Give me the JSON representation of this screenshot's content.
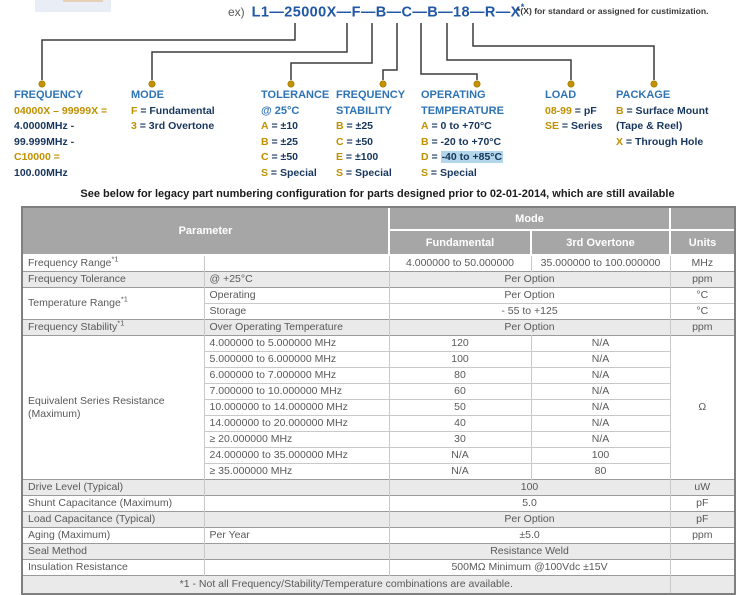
{
  "top": {
    "example_label": "ex)",
    "part_number": "L1—25000X—F—B—C—B—18—R—X",
    "star": "*",
    "note": "*(X) for standard or assigned for custimization."
  },
  "colors": {
    "callout_header_blue": "#2e74b5",
    "part_number_blue": "#2057a7",
    "option_gold": "#bf9000",
    "option_navy": "#17365d",
    "temp_highlight": "#b3d7e8",
    "table_header_bg": "#a6a6a6",
    "row_shade": "#eaeaea",
    "dot_gold": "#c39200"
  },
  "callouts": [
    {
      "header": [
        "FREQUENCY"
      ],
      "items": [
        {
          "gold": "04000X – 99999X =",
          "text": ""
        },
        {
          "text": "4.0000MHz -"
        },
        {
          "text": "99.999MHz -"
        },
        {
          "gold": "C10000 =",
          "text": ""
        },
        {
          "text": "100.00MHz"
        }
      ]
    },
    {
      "header": [
        "MODE"
      ],
      "items": [
        {
          "gold": "F",
          "text": " = Fundamental"
        },
        {
          "gold": "3",
          "text": " = 3rd Overtone"
        }
      ]
    },
    {
      "header": [
        "TOLERANCE",
        "@ 25°C"
      ],
      "items": [
        {
          "gold": "A",
          "text": " = ±10"
        },
        {
          "gold": "B",
          "text": " = ±25"
        },
        {
          "gold": "C",
          "text": " = ±50"
        },
        {
          "gold": "S",
          "text": " = Special"
        }
      ]
    },
    {
      "header": [
        "FREQUENCY",
        "STABILITY"
      ],
      "items": [
        {
          "gold": "B",
          "text": " = ±25"
        },
        {
          "gold": "C",
          "text": " = ±50"
        },
        {
          "gold": "E",
          "text": " = ±100"
        },
        {
          "gold": "S",
          "text": " = Special"
        }
      ]
    },
    {
      "header": [
        "OPERATING",
        "TEMPERATURE"
      ],
      "items": [
        {
          "gold": "A",
          "text": " = 0 to +70°C"
        },
        {
          "gold": "B",
          "text": " = -20 to +70°C"
        },
        {
          "gold": "D",
          "text": " = ",
          "hl": "-40 to +85°C"
        },
        {
          "gold": "S",
          "text": " = Special"
        }
      ]
    },
    {
      "header": [
        "LOAD"
      ],
      "items": [
        {
          "gold": "08-99",
          "text": " = pF"
        },
        {
          "gold": "SE",
          "text": " = Series"
        }
      ]
    },
    {
      "header": [
        "PACKAGE"
      ],
      "items": [
        {
          "gold": "B",
          "text": " = Surface Mount"
        },
        {
          "text": "(Tape & Reel)"
        },
        {
          "gold": "X",
          "text": " = Through Hole"
        }
      ]
    }
  ],
  "legacy_note": "See below for legacy part numbering configuration for parts designed prior to 02-01-2014, which are still available",
  "table": {
    "header": {
      "parameter": "Parameter",
      "mode": "Mode",
      "fundamental": "Fundamental",
      "overtone": "3rd Overtone",
      "units": "Units"
    },
    "rows": [
      {
        "group": true,
        "shade": false,
        "cells": [
          {
            "t": "Frequency Range",
            "sup": "*1",
            "cls": "p1"
          },
          {
            "t": "",
            "cls": "p2"
          },
          {
            "t": "4.000000 to 50.000000",
            "cls": "v"
          },
          {
            "t": "35.000000 to 100.000000",
            "cls": "v"
          },
          {
            "t": "MHz",
            "cls": "u"
          }
        ]
      },
      {
        "group": true,
        "shade": true,
        "cells": [
          {
            "t": "Frequency Tolerance",
            "cls": "p1"
          },
          {
            "t": "@ +25°C",
            "cls": "p2"
          },
          {
            "t": "Per Option",
            "cs": 2,
            "cls": "v"
          },
          {
            "t": "ppm",
            "cls": "u"
          }
        ]
      },
      {
        "group": true,
        "shade": false,
        "cells": [
          {
            "t": "Temperature Range",
            "sup": "*1",
            "rs": 2,
            "cls": "p1"
          },
          {
            "t": "Operating",
            "cls": "p2"
          },
          {
            "t": "Per Option",
            "cs": 2,
            "cls": "v"
          },
          {
            "t": "°C",
            "cls": "u"
          }
        ]
      },
      {
        "group": false,
        "shade": false,
        "cells": [
          {
            "t": "Storage",
            "cls": "p2"
          },
          {
            "t": "- 55 to +125",
            "cs": 2,
            "cls": "v"
          },
          {
            "t": "°C",
            "cls": "u"
          }
        ]
      },
      {
        "group": true,
        "shade": true,
        "cells": [
          {
            "t": "Frequency Stability",
            "sup": "*1",
            "cls": "p1"
          },
          {
            "t": "Over Operating Temperature",
            "cls": "p2"
          },
          {
            "t": "Per Option",
            "cs": 2,
            "cls": "v"
          },
          {
            "t": "ppm",
            "cls": "u"
          }
        ]
      },
      {
        "group": true,
        "shade": false,
        "cells": [
          {
            "t": "Equivalent Series Resistance (Maximum)",
            "rs": 9,
            "cls": "p1"
          },
          {
            "t": "4.000000 to 5.000000 MHz",
            "cls": "p2"
          },
          {
            "t": "120",
            "cls": "v"
          },
          {
            "t": "N/A",
            "cls": "v"
          },
          {
            "t": "Ω",
            "rs": 9,
            "cls": "u"
          }
        ]
      },
      {
        "group": false,
        "shade": false,
        "cells": [
          {
            "t": "5.000000 to 6.000000 MHz",
            "cls": "p2"
          },
          {
            "t": "100",
            "cls": "v"
          },
          {
            "t": "N/A",
            "cls": "v"
          }
        ]
      },
      {
        "group": false,
        "shade": false,
        "cells": [
          {
            "t": "6.000000 to 7.000000 MHz",
            "cls": "p2"
          },
          {
            "t": "80",
            "cls": "v"
          },
          {
            "t": "N/A",
            "cls": "v"
          }
        ]
      },
      {
        "group": false,
        "shade": false,
        "cells": [
          {
            "t": "7.000000 to 10.000000 MHz",
            "cls": "p2"
          },
          {
            "t": "60",
            "cls": "v"
          },
          {
            "t": "N/A",
            "cls": "v"
          }
        ]
      },
      {
        "group": false,
        "shade": false,
        "cells": [
          {
            "t": "10.000000 to 14.000000 MHz",
            "cls": "p2"
          },
          {
            "t": "50",
            "cls": "v"
          },
          {
            "t": "N/A",
            "cls": "v"
          }
        ]
      },
      {
        "group": false,
        "shade": false,
        "cells": [
          {
            "t": "14.000000 to 20.000000 MHz",
            "cls": "p2"
          },
          {
            "t": "40",
            "cls": "v"
          },
          {
            "t": "N/A",
            "cls": "v"
          }
        ]
      },
      {
        "group": false,
        "shade": false,
        "cells": [
          {
            "t": "≥ 20.000000 MHz",
            "cls": "p2"
          },
          {
            "t": "30",
            "cls": "v"
          },
          {
            "t": "N/A",
            "cls": "v"
          }
        ]
      },
      {
        "group": false,
        "shade": false,
        "cells": [
          {
            "t": "24.000000 to 35.000000 MHz",
            "cls": "p2"
          },
          {
            "t": "N/A",
            "cls": "v"
          },
          {
            "t": "100",
            "cls": "v"
          }
        ]
      },
      {
        "group": false,
        "shade": false,
        "cells": [
          {
            "t": "≥ 35.000000 MHz",
            "cls": "p2"
          },
          {
            "t": "N/A",
            "cls": "v"
          },
          {
            "t": "80",
            "cls": "v"
          }
        ]
      },
      {
        "group": true,
        "shade": true,
        "cells": [
          {
            "t": "Drive Level (Typical)",
            "cls": "p1"
          },
          {
            "t": "",
            "cls": "p2"
          },
          {
            "t": "100",
            "cs": 2,
            "cls": "v"
          },
          {
            "t": "uW",
            "cls": "u"
          }
        ]
      },
      {
        "group": true,
        "shade": false,
        "cells": [
          {
            "t": "Shunt Capacitance (Maximum)",
            "cls": "p1"
          },
          {
            "t": "",
            "cls": "p2"
          },
          {
            "t": "5.0",
            "cs": 2,
            "cls": "v"
          },
          {
            "t": "pF",
            "cls": "u"
          }
        ]
      },
      {
        "group": true,
        "shade": true,
        "cells": [
          {
            "t": "Load Capacitance (Typical)",
            "cls": "p1"
          },
          {
            "t": "",
            "cls": "p2"
          },
          {
            "t": "Per Option",
            "cs": 2,
            "cls": "v"
          },
          {
            "t": "pF",
            "cls": "u"
          }
        ]
      },
      {
        "group": true,
        "shade": false,
        "cells": [
          {
            "t": "Aging (Maximum)",
            "cls": "p1"
          },
          {
            "t": "Per Year",
            "cls": "p2"
          },
          {
            "t": "±5.0",
            "cs": 2,
            "cls": "v"
          },
          {
            "t": "ppm",
            "cls": "u"
          }
        ]
      },
      {
        "group": true,
        "shade": true,
        "cells": [
          {
            "t": "Seal Method",
            "cls": "p1"
          },
          {
            "t": "",
            "cls": "p2"
          },
          {
            "t": "Resistance Weld",
            "cs": 2,
            "cls": "v"
          },
          {
            "t": "",
            "cls": "u"
          }
        ]
      },
      {
        "group": true,
        "shade": false,
        "cells": [
          {
            "t": "Insulation Resistance",
            "cls": "p1"
          },
          {
            "t": "",
            "cls": "p2"
          },
          {
            "t": "500MΩ Minimum @100Vdc ±15V",
            "cs": 2,
            "cls": "v"
          },
          {
            "t": "",
            "cls": "u"
          }
        ]
      },
      {
        "group": true,
        "shade": true,
        "cells": [
          {
            "t": "*1 - Not all Frequency/Stability/Temperature combinations are available.",
            "cs": 4,
            "cls": "fn"
          },
          {
            "t": "",
            "cls": "u fn"
          }
        ]
      }
    ]
  }
}
